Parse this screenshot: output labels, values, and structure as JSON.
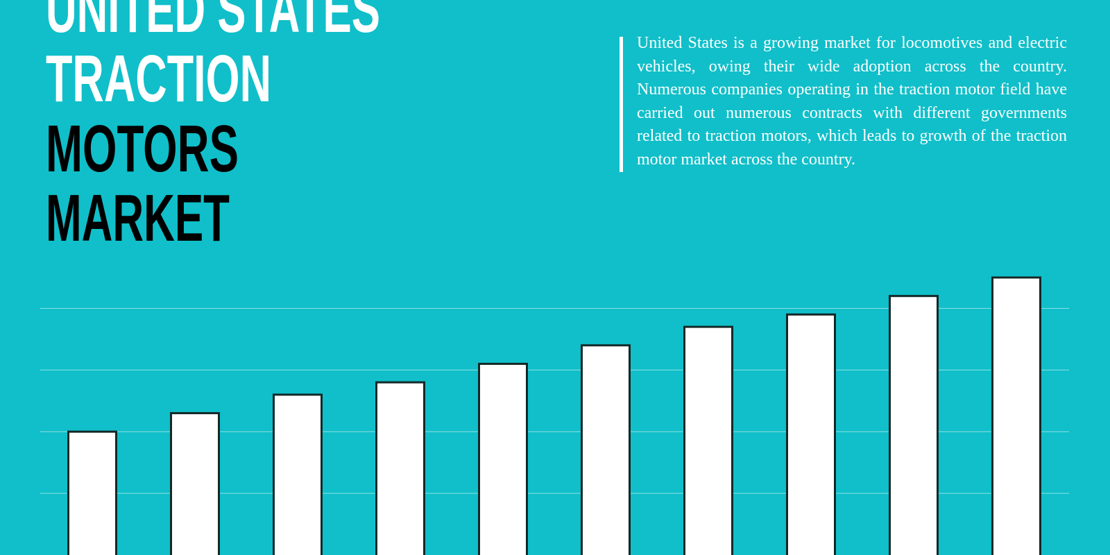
{
  "chart_data": {
    "type": "bar",
    "title": [
      "UNITED STATES",
      "TRACTION",
      "MOTORS",
      "MARKET"
    ],
    "description": "United States is a growing market for locomotives and electric vehicles, owing their wide adoption across the country. Numerous companies operating in the traction motor field have carried out numerous contracts with different governments related to traction motors, which leads to growth of the traction motor market across the country.",
    "values": [
      2.0,
      2.3,
      2.6,
      2.8,
      3.1,
      3.4,
      3.7,
      3.9,
      4.2,
      4.5
    ],
    "color": "#ffffff",
    "ylim": [
      0,
      9
    ],
    "yticks": [
      1,
      2,
      3,
      4
    ],
    "grid": true
  }
}
